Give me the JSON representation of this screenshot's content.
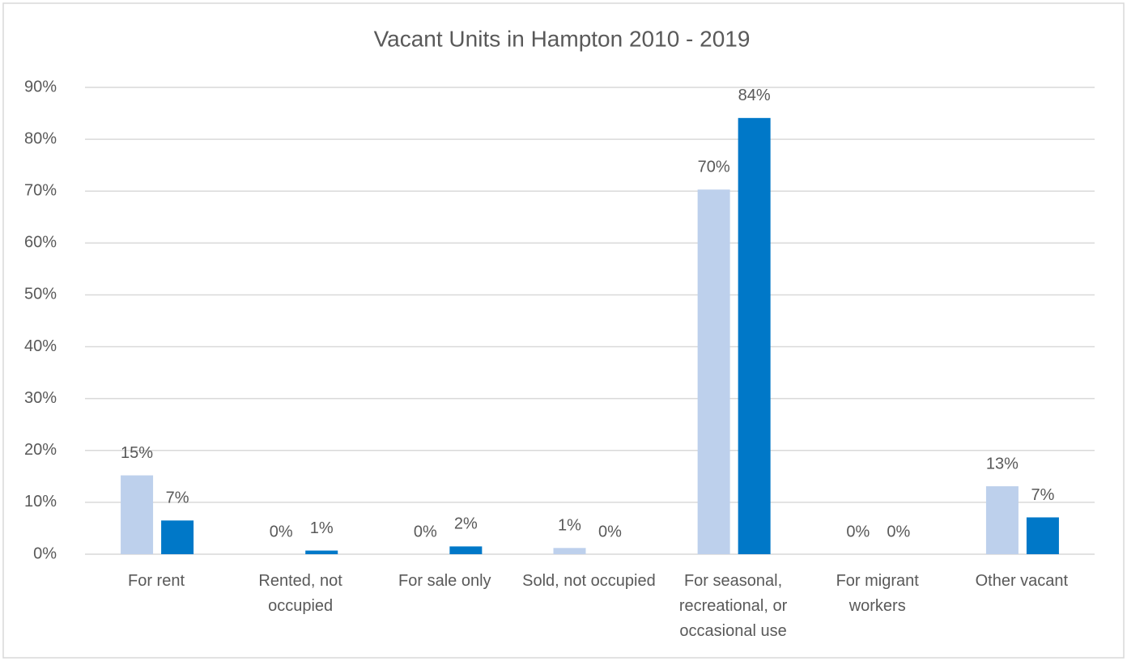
{
  "chart_data": {
    "type": "bar",
    "title": "Vacant Units in Hampton 2010 - 2019",
    "categories": [
      "For rent",
      "Rented, not occupied",
      "For sale only",
      "Sold, not occupied",
      "For seasonal, recreational, or occasional use",
      "For migrant workers",
      "Other vacant"
    ],
    "series": [
      {
        "color": "#bdd0ec",
        "values": [
          15.2,
          0,
          0,
          1.2,
          70.3,
          0,
          13.1
        ],
        "value_labels": [
          "15%",
          "0%",
          "0%",
          "1%",
          "70%",
          "0%",
          "13%"
        ]
      },
      {
        "color": "#0078c8",
        "values": [
          6.5,
          0.7,
          1.5,
          0,
          84.1,
          0,
          7.1
        ],
        "value_labels": [
          "7%",
          "1%",
          "2%",
          "0%",
          "84%",
          "0%",
          "7%"
        ]
      }
    ],
    "ylim": [
      0,
      90
    ],
    "yticks": [
      {
        "value": 0,
        "label": "0%"
      },
      {
        "value": 10,
        "label": "10%"
      },
      {
        "value": 20,
        "label": "20%"
      },
      {
        "value": 30,
        "label": "30%"
      },
      {
        "value": 40,
        "label": "40%"
      },
      {
        "value": 50,
        "label": "50%"
      },
      {
        "value": 60,
        "label": "60%"
      },
      {
        "value": 70,
        "label": "70%"
      },
      {
        "value": 80,
        "label": "80%"
      },
      {
        "value": 90,
        "label": "90%"
      }
    ],
    "grid": true
  }
}
